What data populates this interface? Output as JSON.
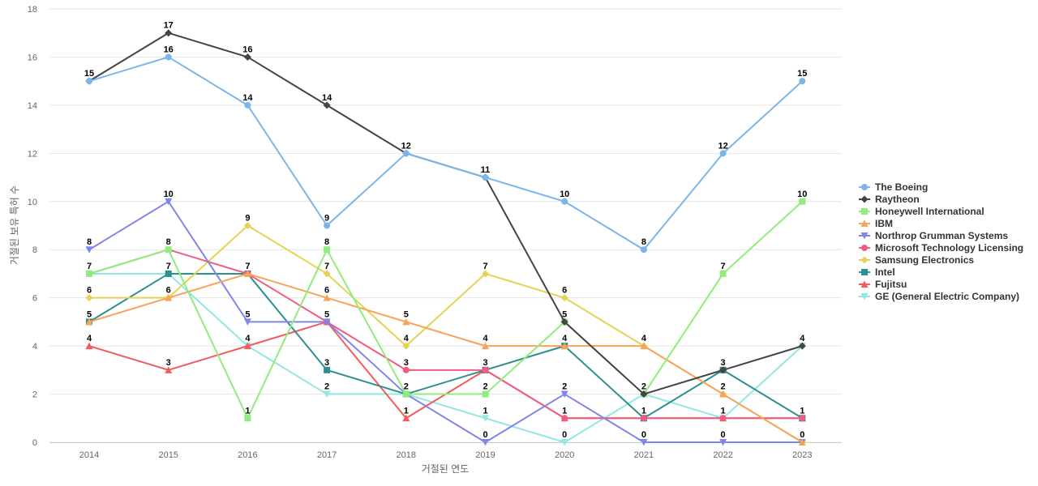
{
  "chart_data": {
    "type": "line",
    "title": "",
    "xlabel": "거절된 연도",
    "ylabel": "거절된 보유 특허 수",
    "x": [
      "2014",
      "2015",
      "2016",
      "2017",
      "2018",
      "2019",
      "2020",
      "2021",
      "2022",
      "2023"
    ],
    "ylim": [
      0,
      18
    ],
    "yticks": [
      0,
      2,
      4,
      6,
      8,
      10,
      12,
      14,
      16,
      18
    ],
    "grid": true,
    "legend_position": "right",
    "series": [
      {
        "name": "The Boeing",
        "color": "#7cb5ec",
        "marker": "circle",
        "values": [
          15,
          16,
          14,
          9,
          12,
          11,
          10,
          8,
          12,
          15
        ]
      },
      {
        "name": "Raytheon",
        "color": "#434348",
        "marker": "diamond",
        "values": [
          15,
          17,
          16,
          14,
          12,
          11,
          5,
          2,
          3,
          4
        ]
      },
      {
        "name": "Honeywell International",
        "color": "#90ed7d",
        "marker": "square",
        "values": [
          7,
          8,
          1,
          8,
          2,
          2,
          5,
          2,
          7,
          10
        ]
      },
      {
        "name": "IBM",
        "color": "#f7a35c",
        "marker": "triangle",
        "values": [
          5,
          6,
          7,
          6,
          5,
          4,
          4,
          4,
          2,
          0
        ]
      },
      {
        "name": "Northrop Grumman Systems",
        "color": "#8085e9",
        "marker": "triangle-down",
        "values": [
          8,
          10,
          5,
          5,
          2,
          0,
          2,
          0,
          0,
          0
        ]
      },
      {
        "name": "Microsoft Technology Licensing",
        "color": "#f15c80",
        "marker": "circle",
        "values": [
          7,
          8,
          7,
          5,
          3,
          3,
          1,
          1,
          1,
          1
        ]
      },
      {
        "name": "Samsung Electronics",
        "color": "#e4d354",
        "marker": "diamond",
        "values": [
          6,
          6,
          9,
          7,
          4,
          7,
          6,
          4,
          2,
          0
        ]
      },
      {
        "name": "Intel",
        "color": "#2b908f",
        "marker": "square",
        "values": [
          5,
          7,
          7,
          3,
          2,
          3,
          4,
          1,
          3,
          1
        ]
      },
      {
        "name": "Fujitsu",
        "color": "#f45b5b",
        "marker": "triangle",
        "values": [
          4,
          3,
          4,
          5,
          1,
          3,
          1,
          1,
          1,
          1
        ]
      },
      {
        "name": "GE (General Electric Company)",
        "color": "#91e8e1",
        "marker": "triangle-down",
        "values": [
          7,
          7,
          4,
          2,
          2,
          1,
          0,
          2,
          1,
          4
        ]
      }
    ],
    "data_labels": [
      {
        "x": "2014",
        "value": 15,
        "series": "The Boeing"
      },
      {
        "x": "2015",
        "value": 17,
        "series": "Raytheon"
      },
      {
        "x": "2015",
        "value": 16,
        "series": "The Boeing"
      },
      {
        "x": "2016",
        "value": 16,
        "series": "Raytheon"
      },
      {
        "x": "2016",
        "value": 14,
        "series": "The Boeing"
      },
      {
        "x": "2017",
        "value": 14,
        "series": "Raytheon"
      },
      {
        "x": "2017",
        "value": 9,
        "series": "The Boeing"
      },
      {
        "x": "2018",
        "value": 12,
        "series": "The Boeing"
      },
      {
        "x": "2019",
        "value": 11,
        "series": "The Boeing"
      },
      {
        "x": "2020",
        "value": 10,
        "series": "The Boeing"
      },
      {
        "x": "2021",
        "value": 8,
        "series": "The Boeing"
      },
      {
        "x": "2022",
        "value": 12,
        "series": "The Boeing"
      },
      {
        "x": "2023",
        "value": 15,
        "series": "The Boeing"
      },
      {
        "x": "2014",
        "value": 8,
        "series": "Northrop Grumman Systems"
      },
      {
        "x": "2014",
        "value": 7,
        "series": "Microsoft Technology Licensing"
      },
      {
        "x": "2014",
        "value": 6,
        "series": "Samsung Electronics"
      },
      {
        "x": "2014",
        "value": 5,
        "series": "Intel"
      },
      {
        "x": "2014",
        "value": 4,
        "series": "Fujitsu"
      },
      {
        "x": "2015",
        "value": 10,
        "series": "Northrop Grumman Systems"
      },
      {
        "x": "2015",
        "value": 8,
        "series": "Microsoft Technology Licensing"
      },
      {
        "x": "2015",
        "value": 7,
        "series": "Intel"
      },
      {
        "x": "2015",
        "value": 6,
        "series": "IBM"
      },
      {
        "x": "2015",
        "value": 3,
        "series": "Fujitsu"
      },
      {
        "x": "2016",
        "value": 9,
        "series": "Samsung Electronics"
      },
      {
        "x": "2016",
        "value": 7,
        "series": "Intel"
      },
      {
        "x": "2016",
        "value": 5,
        "series": "Northrop Grumman Systems"
      },
      {
        "x": "2016",
        "value": 4,
        "series": "GE (General Electric Company)"
      },
      {
        "x": "2016",
        "value": 1,
        "series": "Honeywell International"
      },
      {
        "x": "2017",
        "value": 8,
        "series": "Honeywell International"
      },
      {
        "x": "2017",
        "value": 7,
        "series": "Samsung Electronics"
      },
      {
        "x": "2017",
        "value": 6,
        "series": "IBM"
      },
      {
        "x": "2017",
        "value": 5,
        "series": "Fujitsu"
      },
      {
        "x": "2017",
        "value": 3,
        "series": "Intel"
      },
      {
        "x": "2017",
        "value": 2,
        "series": "GE (General Electric Company)"
      },
      {
        "x": "2018",
        "value": 5,
        "series": "IBM"
      },
      {
        "x": "2018",
        "value": 4,
        "series": "Samsung Electronics"
      },
      {
        "x": "2018",
        "value": 3,
        "series": "Microsoft Technology Licensing"
      },
      {
        "x": "2018",
        "value": 2,
        "series": "Intel"
      },
      {
        "x": "2018",
        "value": 1,
        "series": "Fujitsu"
      },
      {
        "x": "2019",
        "value": 7,
        "series": "Samsung Electronics"
      },
      {
        "x": "2019",
        "value": 4,
        "series": "IBM"
      },
      {
        "x": "2019",
        "value": 3,
        "series": "Intel"
      },
      {
        "x": "2019",
        "value": 2,
        "series": "Honeywell International"
      },
      {
        "x": "2019",
        "value": 1,
        "series": "GE (General Electric Company)"
      },
      {
        "x": "2019",
        "value": 0,
        "series": "Northrop Grumman Systems"
      },
      {
        "x": "2020",
        "value": 6,
        "series": "Samsung Electronics"
      },
      {
        "x": "2020",
        "value": 5,
        "series": "Raytheon"
      },
      {
        "x": "2020",
        "value": 4,
        "series": "Intel"
      },
      {
        "x": "2020",
        "value": 2,
        "series": "Northrop Grumman Systems"
      },
      {
        "x": "2020",
        "value": 1,
        "series": "Fujitsu"
      },
      {
        "x": "2020",
        "value": 0,
        "series": "GE (General Electric Company)"
      },
      {
        "x": "2021",
        "value": 4,
        "series": "IBM"
      },
      {
        "x": "2021",
        "value": 2,
        "series": "Honeywell International"
      },
      {
        "x": "2021",
        "value": 1,
        "series": "Intel"
      },
      {
        "x": "2021",
        "value": 0,
        "series": "Northrop Grumman Systems"
      },
      {
        "x": "2022",
        "value": 7,
        "series": "Honeywell International"
      },
      {
        "x": "2022",
        "value": 3,
        "series": "Intel"
      },
      {
        "x": "2022",
        "value": 2,
        "series": "IBM"
      },
      {
        "x": "2022",
        "value": 1,
        "series": "Fujitsu"
      },
      {
        "x": "2022",
        "value": 0,
        "series": "Northrop Grumman Systems"
      },
      {
        "x": "2023",
        "value": 10,
        "series": "Honeywell International"
      },
      {
        "x": "2023",
        "value": 4,
        "series": "Raytheon"
      },
      {
        "x": "2023",
        "value": 1,
        "series": "Intel"
      },
      {
        "x": "2023",
        "value": 0,
        "series": "IBM"
      }
    ]
  }
}
